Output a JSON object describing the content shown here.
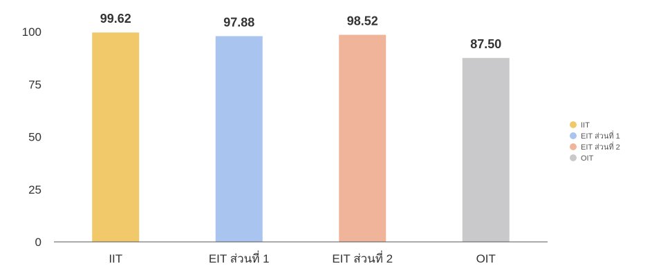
{
  "chart_data": {
    "type": "bar",
    "categories": [
      "IIT",
      "EIT ส่วนที่ 1",
      "EIT ส่วนที่ 2",
      "OIT"
    ],
    "values": [
      99.62,
      97.88,
      98.52,
      87.5
    ],
    "value_labels": [
      "99.62",
      "97.88",
      "98.52",
      "87.50"
    ],
    "colors": [
      "#f2c96a",
      "#a9c4ee",
      "#f0b49a",
      "#c9c9cc"
    ],
    "ylim": [
      0,
      100
    ],
    "yticks": [
      0,
      25,
      50,
      75,
      100
    ],
    "ytick_labels": [
      "0",
      "25",
      "50",
      "75",
      "100"
    ],
    "grid": false,
    "legend": {
      "position": "right",
      "entries": [
        "IIT",
        "EIT ส่วนที่ 1",
        "EIT ส่วนที่ 2",
        "OIT"
      ]
    },
    "title": "",
    "xlabel": "",
    "ylabel": ""
  }
}
